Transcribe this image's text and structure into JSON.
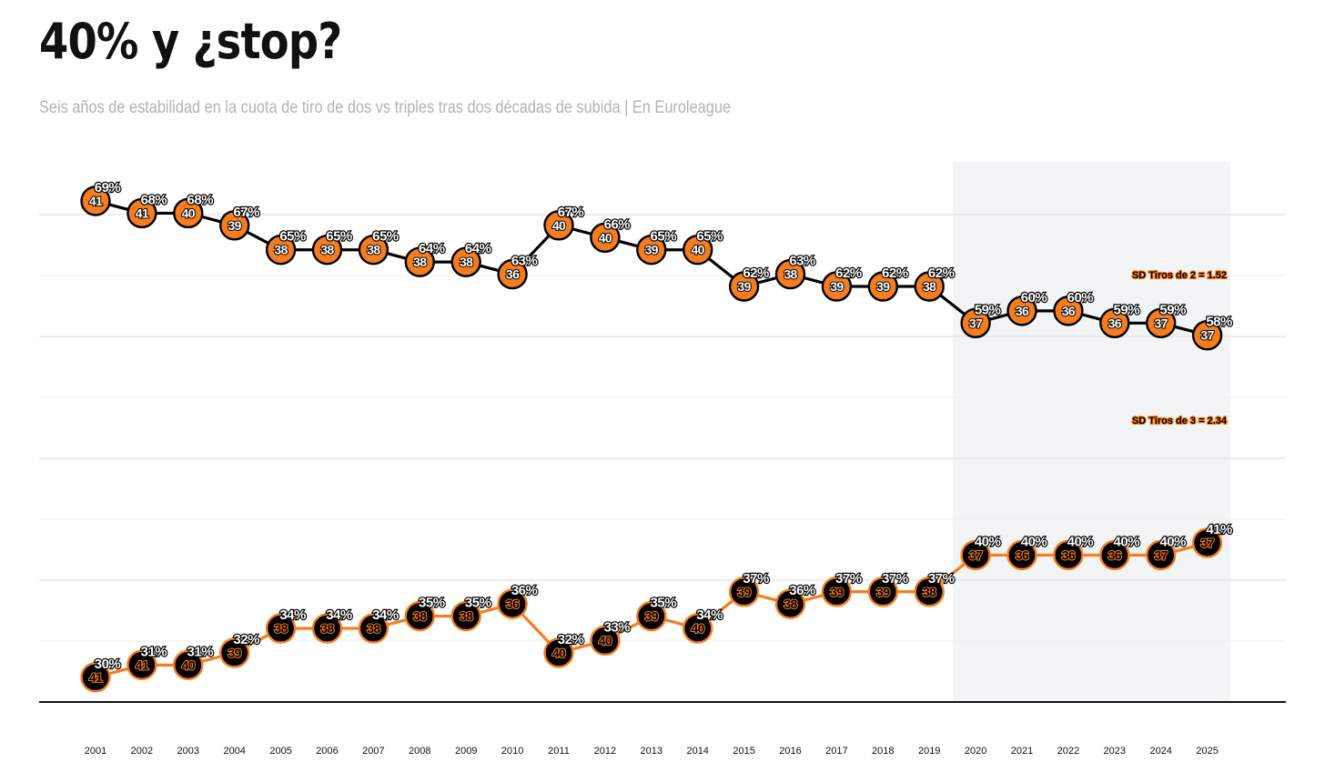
{
  "header": {
    "title": "40% y ¿stop?",
    "subtitle": "Seis años de estabilidad en la cuota de tiro de dos vs triples tras dos décadas de subida | En Euroleague"
  },
  "colors": {
    "orange": "#f57c1f",
    "black": "#000000",
    "highlight_band": "#f3f4f6",
    "grid": "#e6e6e6"
  },
  "chart_data": {
    "type": "line",
    "x": [
      "2001",
      "2002",
      "2003",
      "2004",
      "2005",
      "2006",
      "2007",
      "2008",
      "2009",
      "2010",
      "2011",
      "2012",
      "2013",
      "2014",
      "2015",
      "2016",
      "2017",
      "2018",
      "2019",
      "2020",
      "2021",
      "2022",
      "2023",
      "2024",
      "2025"
    ],
    "series": [
      {
        "name": "Tiros de 2",
        "values": [
          69,
          68,
          68,
          67,
          65,
          65,
          65,
          64,
          64,
          63,
          67,
          66,
          65,
          65,
          62,
          63,
          62,
          62,
          62,
          59,
          60,
          60,
          59,
          59,
          58
        ],
        "point_labels": [
          41,
          41,
          40,
          39,
          38,
          38,
          38,
          38,
          38,
          36,
          40,
          40,
          39,
          40,
          39,
          38,
          39,
          39,
          38,
          37,
          36,
          36,
          36,
          37,
          37
        ],
        "sd_label": "SD Tiros de 2 = 1.52"
      },
      {
        "name": "Tiros de 3",
        "values": [
          30,
          31,
          31,
          32,
          34,
          34,
          34,
          35,
          35,
          36,
          32,
          33,
          35,
          34,
          37,
          36,
          37,
          37,
          37,
          40,
          40,
          40,
          40,
          40,
          41
        ],
        "point_labels": [
          41,
          41,
          40,
          39,
          38,
          38,
          38,
          38,
          38,
          36,
          40,
          40,
          39,
          40,
          39,
          38,
          39,
          39,
          38,
          37,
          36,
          36,
          36,
          37,
          37
        ],
        "sd_label": "SD Tiros de 3 = 2.34"
      }
    ],
    "highlight_range": [
      "2020",
      "2025"
    ],
    "value_suffix": "%",
    "grid": true,
    "legend": "none"
  }
}
